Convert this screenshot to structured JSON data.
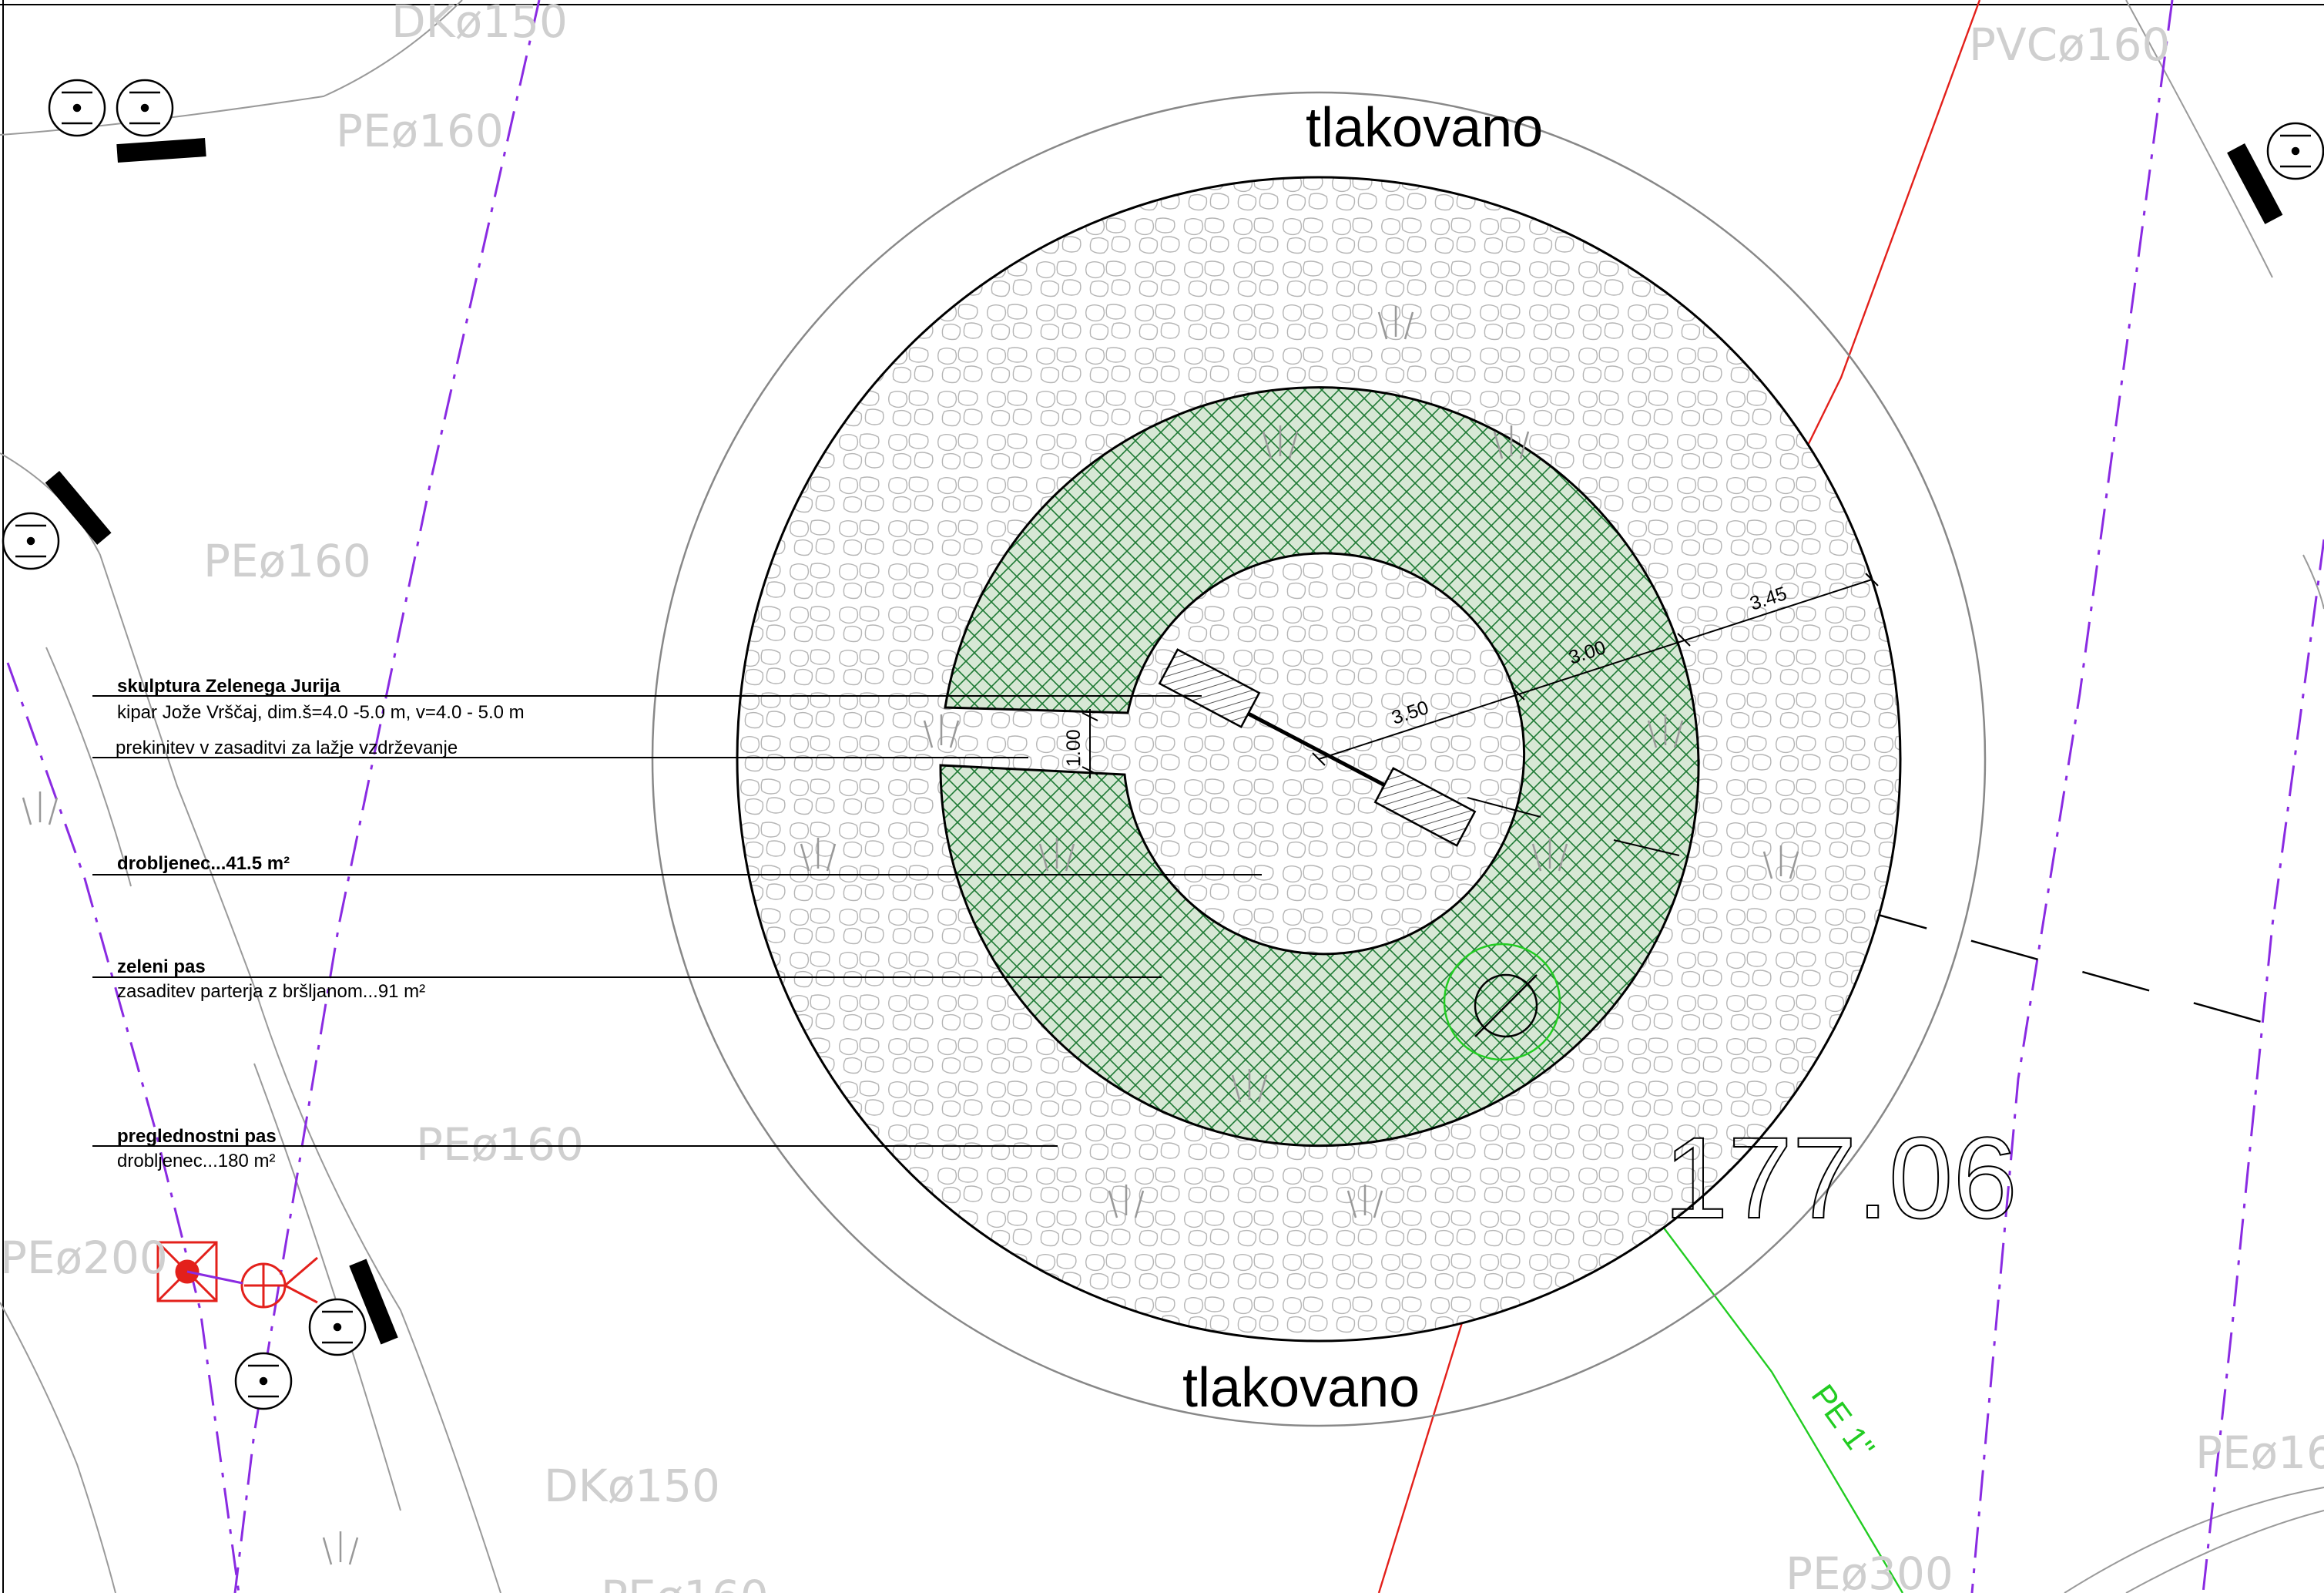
{
  "labels": {
    "paved_top": "tlakovano",
    "paved_bottom": "tlakovano",
    "elevation": "177.06",
    "pipe_green": "PE 1\""
  },
  "pipe_labels": [
    "DKø150",
    "PEø160",
    "PEø160",
    "PEø160",
    "PEø200",
    "DKø150",
    "PVCø160",
    "PEø16",
    "PEø300",
    "PEø160"
  ],
  "dimensions": {
    "radius_inner": "3.50",
    "ring_green": "3.00",
    "ring_outer": "3.45",
    "gap": "1.00"
  },
  "legend": [
    {
      "title": "skulptura Zelenega Jurija",
      "detail": "kipar Jože Vrščaj, dim.š=4.0 -5.0 m, v=4.0 - 5.0 m"
    },
    {
      "title": "",
      "detail": "prekinitev v zasaditvi za lažje vzdrževanje"
    },
    {
      "title": "drobljenec...41.5 m²",
      "detail": ""
    },
    {
      "title": "zeleni pas",
      "detail": "zasaditev parterja z bršljanom...91 m²"
    },
    {
      "title": "preglednostni pas",
      "detail": "drobljenec...180 m²"
    }
  ],
  "colors": {
    "green_fill": "#d7e8d5",
    "green_hatch": "#1e7a34",
    "pipe_purple": "#8a2be2",
    "pipe_red": "#e3201b",
    "pipe_green": "#22cc22",
    "hydrant_red": "#e3201b"
  }
}
